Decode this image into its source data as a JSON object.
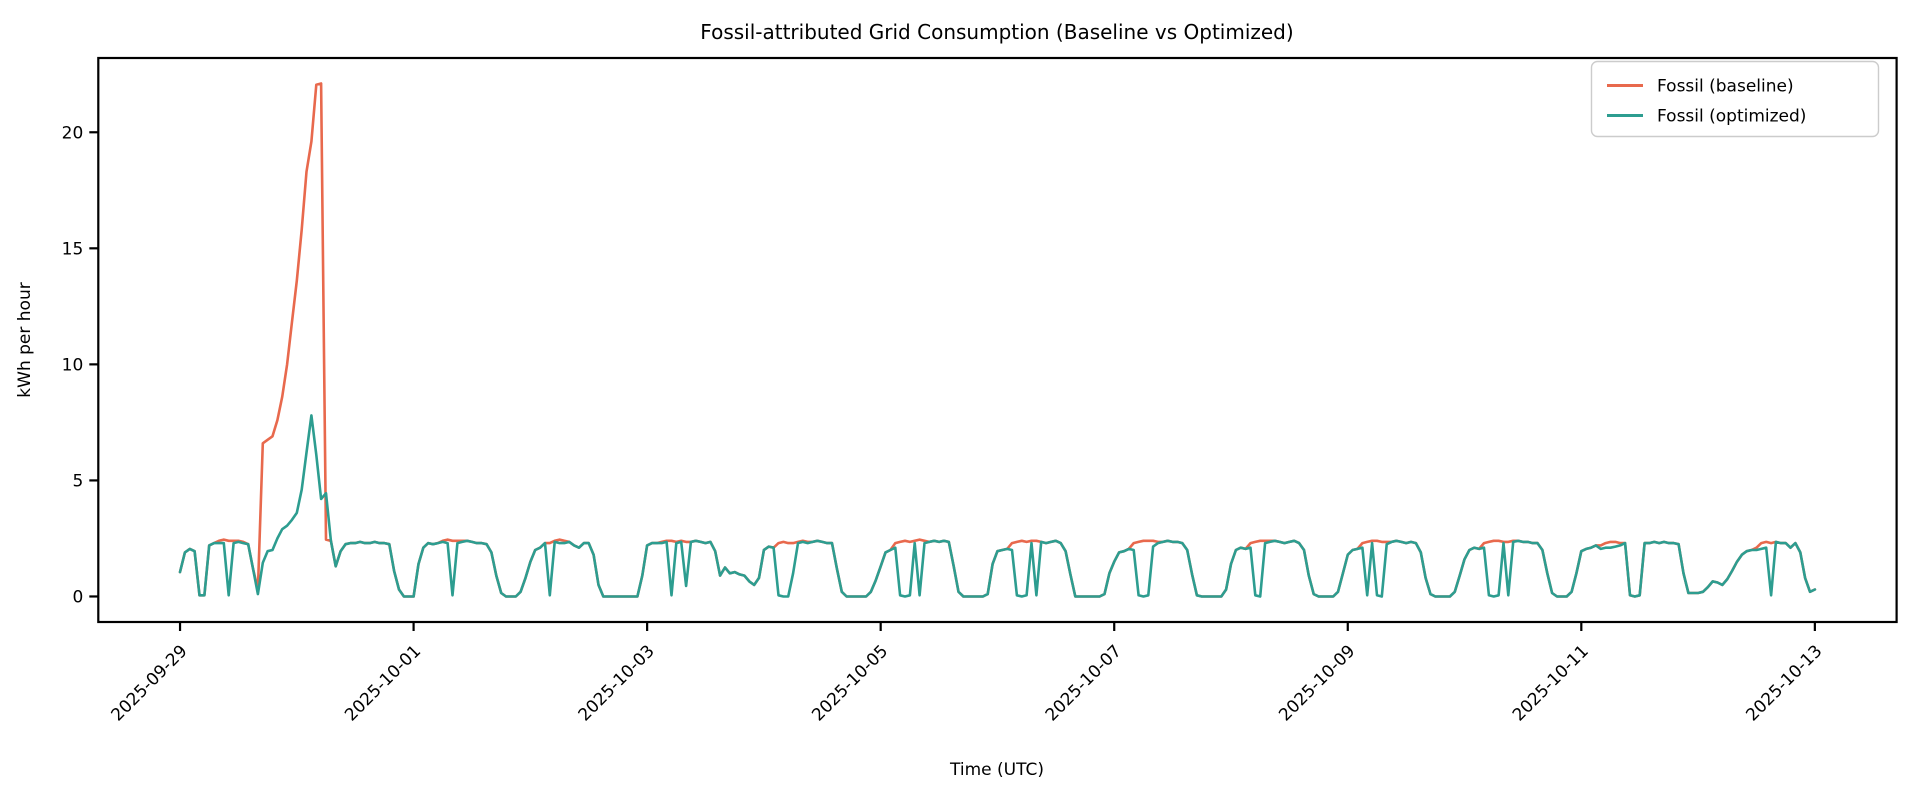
{
  "chart": {
    "title": "Fossil-attributed Grid Consumption (Baseline vs Optimized)",
    "xlabel": "Time (UTC)",
    "ylabel": "kWh per hour"
  },
  "legend": {
    "position": "upper right",
    "items": [
      {
        "label": "Fossil (baseline)",
        "color": "#E8694D"
      },
      {
        "label": "Fossil (optimized)",
        "color": "#2D9D90"
      }
    ]
  },
  "chart_data": {
    "type": "line",
    "title": "Fossil-attributed Grid Consumption (Baseline vs Optimized)",
    "xlabel": "Time (UTC)",
    "ylabel": "kWh per hour",
    "grid": false,
    "legend_position": "upper right",
    "x_start": "2025-09-29T00:00Z",
    "x_step_hours": 1,
    "x_tick_labels": [
      "2025-09-29",
      "2025-10-01",
      "2025-10-03",
      "2025-10-05",
      "2025-10-07",
      "2025-10-09",
      "2025-10-11",
      "2025-10-13"
    ],
    "x_tick_hours": [
      0,
      48,
      96,
      144,
      192,
      240,
      288,
      336
    ],
    "y_ticks": [
      0,
      5,
      10,
      15,
      20
    ],
    "xlim_hours": [
      -16.8,
      352.8
    ],
    "ylim": [
      -1.1,
      23.2
    ],
    "series": [
      {
        "name": "Fossil (baseline)",
        "color": "#E8694D",
        "values": [
          1.05,
          1.9,
          2.05,
          1.95,
          0.05,
          0.05,
          2.2,
          2.3,
          2.4,
          2.45,
          2.4,
          2.4,
          2.4,
          2.35,
          2.25,
          1.2,
          0.3,
          6.6,
          6.75,
          6.9,
          7.6,
          8.6,
          10.0,
          11.8,
          13.6,
          15.8,
          18.3,
          19.6,
          22.05,
          22.1,
          2.45,
          2.4,
          1.3,
          1.95,
          2.25,
          2.3,
          2.3,
          2.35,
          2.3,
          2.3,
          2.35,
          2.3,
          2.3,
          2.25,
          1.1,
          0.3,
          0,
          0,
          0,
          1.4,
          2.1,
          2.3,
          2.25,
          2.3,
          2.4,
          2.45,
          2.4,
          2.4,
          2.4,
          2.4,
          2.35,
          2.3,
          2.3,
          2.25,
          1.9,
          0.9,
          0.15,
          0,
          0,
          0,
          0.2,
          0.8,
          1.5,
          2.0,
          2.1,
          2.3,
          2.3,
          2.4,
          2.45,
          2.4,
          2.35,
          2.2,
          2.1,
          2.3,
          2.3,
          1.8,
          0.5,
          0,
          0,
          0,
          0,
          0,
          0,
          0,
          0,
          0.9,
          2.2,
          2.3,
          2.3,
          2.35,
          2.4,
          2.4,
          2.35,
          2.4,
          2.35,
          2.35,
          2.4,
          2.35,
          2.3,
          2.35,
          1.95,
          0.9,
          1.25,
          1.0,
          1.05,
          0.95,
          0.9,
          0.65,
          0.5,
          0.8,
          2.0,
          2.15,
          2.1,
          2.3,
          2.35,
          2.3,
          2.3,
          2.35,
          2.4,
          2.35,
          2.35,
          2.4,
          2.35,
          2.3,
          2.3,
          1.2,
          0.2,
          0,
          0,
          0,
          0,
          0,
          0.2,
          0.7,
          1.3,
          1.9,
          2.0,
          2.3,
          2.35,
          2.4,
          2.35,
          2.4,
          2.45,
          2.4,
          2.35,
          2.4,
          2.35,
          2.4,
          2.35,
          1.3,
          0.2,
          0,
          0,
          0,
          0,
          0,
          0.1,
          1.4,
          1.95,
          2.0,
          2.05,
          2.3,
          2.35,
          2.4,
          2.35,
          2.4,
          2.4,
          2.35,
          2.3,
          2.35,
          2.4,
          2.3,
          1.95,
          0.95,
          0,
          0,
          0,
          0,
          0,
          0,
          0.1,
          1.0,
          1.5,
          1.9,
          1.95,
          2.05,
          2.3,
          2.35,
          2.4,
          2.4,
          2.4,
          2.35,
          2.35,
          2.4,
          2.35,
          2.35,
          2.3,
          2.0,
          0.95,
          0.05,
          0,
          0,
          0,
          0,
          0,
          0.3,
          1.4,
          2.0,
          2.1,
          2.05,
          2.3,
          2.35,
          2.4,
          2.4,
          2.4,
          2.4,
          2.35,
          2.3,
          2.35,
          2.4,
          2.3,
          2.0,
          0.9,
          0.1,
          0,
          0,
          0,
          0,
          0.2,
          1.0,
          1.8,
          2.0,
          2.05,
          2.3,
          2.35,
          2.4,
          2.4,
          2.35,
          2.35,
          2.35,
          2.4,
          2.35,
          2.3,
          2.35,
          2.3,
          1.9,
          0.8,
          0.1,
          0,
          0,
          0,
          0,
          0.2,
          0.9,
          1.6,
          2.0,
          2.1,
          2.05,
          2.3,
          2.35,
          2.4,
          2.4,
          2.35,
          2.35,
          2.4,
          2.4,
          2.35,
          2.35,
          2.3,
          2.3,
          2.0,
          1.0,
          0.15,
          0,
          0,
          0,
          0.2,
          1.0,
          1.95,
          2.05,
          2.1,
          2.2,
          2.2,
          2.3,
          2.35,
          2.35,
          2.3,
          2.3,
          0.05,
          0,
          0.05,
          2.3,
          2.3,
          2.35,
          2.3,
          2.35,
          2.3,
          2.3,
          2.25,
          1.0,
          0.15,
          0.15,
          0.15,
          0.2,
          0.4,
          0.65,
          0.6,
          0.5,
          0.75,
          1.1,
          1.5,
          1.8,
          1.95,
          2.0,
          2.1,
          2.3,
          2.35,
          2.3,
          2.35,
          2.3,
          2.3,
          2.1,
          2.3,
          1.9,
          0.8,
          0.2,
          0.3
        ]
      },
      {
        "name": "Fossil (optimized)",
        "color": "#2D9D90",
        "values": [
          1.05,
          1.9,
          2.05,
          1.95,
          0.05,
          0.05,
          2.2,
          2.3,
          2.3,
          2.3,
          0.05,
          2.3,
          2.35,
          2.3,
          2.25,
          1.2,
          0.1,
          1.45,
          1.95,
          2.0,
          2.5,
          2.9,
          3.05,
          3.3,
          3.6,
          4.6,
          6.2,
          7.8,
          6.1,
          4.2,
          4.45,
          2.4,
          1.3,
          1.95,
          2.25,
          2.3,
          2.3,
          2.35,
          2.3,
          2.3,
          2.35,
          2.3,
          2.3,
          2.25,
          1.1,
          0.3,
          0,
          0,
          0,
          1.4,
          2.1,
          2.3,
          2.25,
          2.3,
          2.35,
          2.3,
          0.05,
          2.3,
          2.35,
          2.4,
          2.35,
          2.3,
          2.3,
          2.25,
          1.9,
          0.9,
          0.15,
          0,
          0,
          0,
          0.2,
          0.8,
          1.5,
          2.0,
          2.1,
          2.3,
          0.05,
          2.35,
          2.3,
          2.3,
          2.35,
          2.2,
          2.1,
          2.3,
          2.3,
          1.8,
          0.5,
          0,
          0,
          0,
          0,
          0,
          0,
          0,
          0,
          0.9,
          2.2,
          2.3,
          2.3,
          2.3,
          2.35,
          0.05,
          2.3,
          2.35,
          0.45,
          2.35,
          2.4,
          2.35,
          2.3,
          2.35,
          1.95,
          0.9,
          1.25,
          1.0,
          1.05,
          0.95,
          0.9,
          0.65,
          0.5,
          0.8,
          2.0,
          2.15,
          2.1,
          0.05,
          0,
          0,
          1.0,
          2.3,
          2.35,
          2.3,
          2.35,
          2.4,
          2.35,
          2.3,
          2.3,
          1.2,
          0.2,
          0,
          0,
          0,
          0,
          0,
          0.2,
          0.7,
          1.3,
          1.9,
          2.0,
          2.1,
          0.05,
          0,
          0.05,
          2.3,
          0.05,
          2.3,
          2.35,
          2.4,
          2.35,
          2.4,
          2.35,
          1.3,
          0.2,
          0,
          0,
          0,
          0,
          0,
          0.1,
          1.4,
          1.95,
          2.0,
          2.05,
          2.0,
          0.05,
          0,
          0.05,
          2.3,
          0.05,
          2.35,
          2.3,
          2.35,
          2.4,
          2.3,
          1.95,
          0.95,
          0,
          0,
          0,
          0,
          0,
          0,
          0.1,
          1.0,
          1.5,
          1.9,
          1.95,
          2.05,
          2.0,
          0.05,
          0,
          0.05,
          2.15,
          2.3,
          2.35,
          2.4,
          2.35,
          2.35,
          2.3,
          2.0,
          0.95,
          0.05,
          0,
          0,
          0,
          0,
          0,
          0.3,
          1.4,
          2.0,
          2.1,
          2.05,
          2.1,
          0.05,
          0,
          2.3,
          2.35,
          2.4,
          2.35,
          2.3,
          2.35,
          2.4,
          2.3,
          2.0,
          0.9,
          0.1,
          0,
          0,
          0,
          0,
          0.2,
          1.0,
          1.8,
          2.0,
          2.05,
          2.1,
          0.05,
          2.3,
          0.05,
          0,
          2.25,
          2.35,
          2.4,
          2.35,
          2.3,
          2.35,
          2.3,
          1.9,
          0.8,
          0.1,
          0,
          0,
          0,
          0,
          0.2,
          0.9,
          1.6,
          2.0,
          2.1,
          2.05,
          2.1,
          0.05,
          0,
          0.05,
          2.3,
          0.05,
          2.35,
          2.4,
          2.35,
          2.35,
          2.3,
          2.3,
          2.0,
          1.0,
          0.15,
          0,
          0,
          0,
          0.2,
          1.0,
          1.95,
          2.05,
          2.1,
          2.2,
          2.05,
          2.1,
          2.1,
          2.15,
          2.2,
          2.3,
          0.05,
          0,
          0.05,
          2.3,
          2.3,
          2.35,
          2.3,
          2.35,
          2.3,
          2.3,
          2.25,
          1.0,
          0.15,
          0.15,
          0.15,
          0.2,
          0.4,
          0.65,
          0.6,
          0.5,
          0.75,
          1.1,
          1.5,
          1.8,
          1.95,
          2.0,
          2.0,
          2.05,
          2.1,
          0.05,
          2.35,
          2.3,
          2.3,
          2.1,
          2.3,
          1.9,
          0.8,
          0.2,
          0.3
        ]
      }
    ]
  }
}
